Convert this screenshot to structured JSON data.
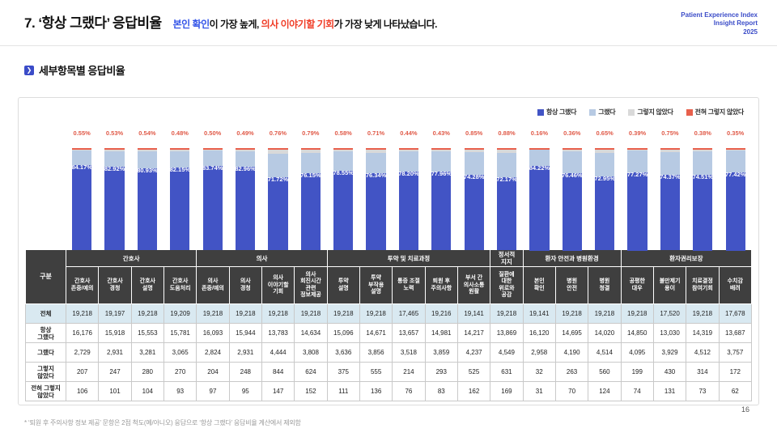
{
  "header": {
    "title": "7. ‘항상 그랬다’ 응답비율",
    "subtitle": {
      "blue": "본인 확인",
      "mid": "이 가장 높게, ",
      "red": "의사 이야기할 기회",
      "tail": "가 가장 낮게 나타났습니다."
    },
    "brand": {
      "line1": "Patient Experience Index",
      "line2": "Insight Report",
      "line3": "2025"
    }
  },
  "section": {
    "title": "세부항목별 응답비율",
    "bullet": "❯"
  },
  "legend": {
    "items": [
      {
        "label": "항상 그랬다",
        "color": "#4254c5"
      },
      {
        "label": "그랬다",
        "color": "#b7cae3"
      },
      {
        "label": "그렇지 않았다",
        "color": "#d9d9d9"
      },
      {
        "label": "전혀 그렇지 않았다",
        "color": "#e8604c"
      }
    ]
  },
  "chart_data": {
    "type": "bar",
    "stacked_percent": true,
    "title": "세부항목별 응답비율",
    "legend_position": "top-right",
    "ylim": [
      0,
      100
    ],
    "categories": [
      "간호사 존중/예의",
      "간호사 경청",
      "간호사 설명",
      "간호사 도움처리",
      "의사 존중/예의",
      "의사 경청",
      "의사 이야기할 기회",
      "의사 회진시간 관련 정보제공",
      "투약 설명",
      "투약 부작용 설명",
      "통증 조절 노력",
      "퇴원 후 주의사항",
      "부서 간 의사소통 원활",
      "질환에 대한 위로와 공감",
      "본인 확인",
      "병원 안전",
      "병원 청결",
      "공평한 대우",
      "불만제기 용이",
      "치료결정 참여기회",
      "수치감 배려"
    ],
    "totals": [
      19218,
      19197,
      19218,
      19209,
      19218,
      19218,
      19218,
      19218,
      19218,
      19218,
      17465,
      19216,
      19141,
      19218,
      19141,
      19218,
      19218,
      19218,
      17520,
      19218,
      17678
    ],
    "series": [
      {
        "name": "항상 그랬다",
        "color": "#4254c5",
        "values": [
          16176,
          15918,
          15553,
          15781,
          16093,
          15944,
          13783,
          14634,
          15096,
          14671,
          13657,
          14981,
          14217,
          13869,
          16120,
          14695,
          14020,
          14850,
          13030,
          14319,
          13687
        ]
      },
      {
        "name": "그랬다",
        "color": "#b7cae3",
        "values": [
          2729,
          2931,
          3281,
          3065,
          2824,
          2931,
          4444,
          3808,
          3636,
          3856,
          3518,
          3859,
          4237,
          4549,
          2958,
          4190,
          4514,
          4095,
          3929,
          4512,
          3757
        ]
      },
      {
        "name": "그렇지 않았다",
        "color": "#d9d9d9",
        "values": [
          207,
          247,
          280,
          270,
          204,
          248,
          844,
          624,
          375,
          555,
          214,
          293,
          525,
          631,
          32,
          263,
          560,
          199,
          430,
          314,
          172
        ]
      },
      {
        "name": "전혀 그렇지 않았다",
        "color": "#e8604c",
        "values": [
          106,
          101,
          104,
          93,
          97,
          95,
          147,
          152,
          111,
          136,
          76,
          83,
          162,
          169,
          31,
          70,
          124,
          74,
          131,
          73,
          62
        ]
      }
    ],
    "bar_labels_always_pct": [
      "84.17%",
      "82.92%",
      "80.93%",
      "82.15%",
      "83.74%",
      "82.96%",
      "71.72%",
      "76.15%",
      "78.55%",
      "76.34%",
      "78.20%",
      "77.96%",
      "74.28%",
      "72.17%",
      "84.22%",
      "76.46%",
      "72.95%",
      "77.27%",
      "74.37%",
      "74.51%",
      "77.42%"
    ],
    "top_labels_never_pct": [
      "0.55%",
      "0.53%",
      "0.54%",
      "0.48%",
      "0.50%",
      "0.49%",
      "0.76%",
      "0.79%",
      "0.58%",
      "0.71%",
      "0.44%",
      "0.43%",
      "0.85%",
      "0.88%",
      "0.16%",
      "0.36%",
      "0.65%",
      "0.39%",
      "0.75%",
      "0.38%",
      "0.35%"
    ]
  },
  "table": {
    "corner_label": "구분",
    "groups": [
      {
        "label": "간호사",
        "span": 4
      },
      {
        "label": "의사",
        "span": 4
      },
      {
        "label": "투약 및 치료과정",
        "span": 5
      },
      {
        "label": "정서적\n지지",
        "span": 1
      },
      {
        "label": "환자 안전과 병원환경",
        "span": 3
      },
      {
        "label": "환자권리보장",
        "span": 4
      }
    ],
    "columns": [
      "간호사\n존중/예의",
      "간호사\n경청",
      "간호사\n설명",
      "간호사\n도움처리",
      "의사\n존중/예의",
      "의사\n경청",
      "의사\n이야기할\n기회",
      "의사\n회진시간\n관련\n정보제공",
      "투약\n설명",
      "투약\n부작용\n설명",
      "통증 조절\n노력",
      "퇴원 후\n주의사항",
      "부서 간\n의사소통\n원활",
      "질환에\n대한\n위로와\n공감",
      "본인\n확인",
      "병원\n안전",
      "병원\n청결",
      "공평한\n대우",
      "불만제기\n용이",
      "치료결정\n참여기회",
      "수치감\n배려"
    ],
    "rows": [
      {
        "label": "전체",
        "highlight": true,
        "values": [
          "19,218",
          "19,197",
          "19,218",
          "19,209",
          "19,218",
          "19,218",
          "19,218",
          "19,218",
          "19,218",
          "19,218",
          "17,465",
          "19,216",
          "19,141",
          "19,218",
          "19,141",
          "19,218",
          "19,218",
          "19,218",
          "17,520",
          "19,218",
          "17,678"
        ]
      },
      {
        "label": "항상\n그랬다",
        "highlight": false,
        "values": [
          "16,176",
          "15,918",
          "15,553",
          "15,781",
          "16,093",
          "15,944",
          "13,783",
          "14,634",
          "15,096",
          "14,671",
          "13,657",
          "14,981",
          "14,217",
          "13,869",
          "16,120",
          "14,695",
          "14,020",
          "14,850",
          "13,030",
          "14,319",
          "13,687"
        ]
      },
      {
        "label": "그랬다",
        "highlight": false,
        "values": [
          "2,729",
          "2,931",
          "3,281",
          "3,065",
          "2,824",
          "2,931",
          "4,444",
          "3,808",
          "3,636",
          "3,856",
          "3,518",
          "3,859",
          "4,237",
          "4,549",
          "2,958",
          "4,190",
          "4,514",
          "4,095",
          "3,929",
          "4,512",
          "3,757"
        ]
      },
      {
        "label": "그렇지\n않았다",
        "highlight": false,
        "values": [
          "207",
          "247",
          "280",
          "270",
          "204",
          "248",
          "844",
          "624",
          "375",
          "555",
          "214",
          "293",
          "525",
          "631",
          "32",
          "263",
          "560",
          "199",
          "430",
          "314",
          "172"
        ]
      },
      {
        "label": "전혀 그렇지\n않았다",
        "highlight": false,
        "values": [
          "106",
          "101",
          "104",
          "93",
          "97",
          "95",
          "147",
          "152",
          "111",
          "136",
          "76",
          "83",
          "162",
          "169",
          "31",
          "70",
          "124",
          "74",
          "131",
          "73",
          "62"
        ]
      }
    ]
  },
  "footnote": "* ‘퇴원 후 주의사항 정보 제공’ 문항은 2점 척도(예/아니오) 응답으로 ‘항상 그랬다’ 응답비율 계산에서 제외함",
  "page_number": "16"
}
